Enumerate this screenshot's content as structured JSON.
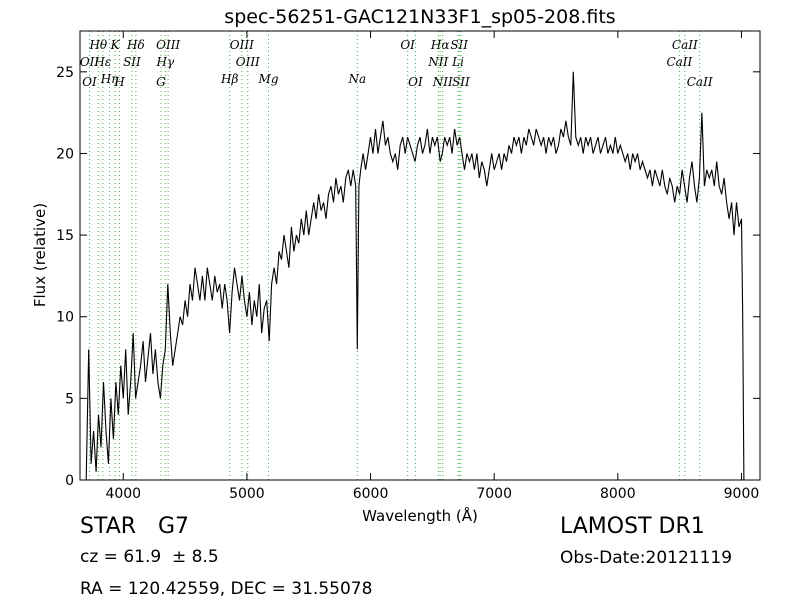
{
  "chart_data": {
    "type": "line",
    "title": "spec-56251-GAC121N33F1_sp05-208.fits",
    "xlabel": "Wavelength (Å)",
    "ylabel": "Flux (relative)",
    "xlim": [
      3650,
      9150
    ],
    "ylim": [
      0,
      27.5
    ],
    "xticks": [
      4000,
      5000,
      6000,
      7000,
      8000,
      9000
    ],
    "yticks": [
      0,
      5,
      10,
      15,
      20,
      25
    ],
    "line_color": "#000000",
    "marker_color": "#44aa44",
    "spectrum": [
      [
        3700,
        0
      ],
      [
        3720,
        8
      ],
      [
        3740,
        1
      ],
      [
        3760,
        3
      ],
      [
        3780,
        0.5
      ],
      [
        3800,
        4
      ],
      [
        3820,
        2
      ],
      [
        3840,
        6
      ],
      [
        3860,
        3
      ],
      [
        3880,
        1
      ],
      [
        3900,
        5
      ],
      [
        3920,
        2.5
      ],
      [
        3940,
        6
      ],
      [
        3960,
        4
      ],
      [
        3980,
        7
      ],
      [
        4000,
        5
      ],
      [
        4020,
        8
      ],
      [
        4040,
        4
      ],
      [
        4060,
        6
      ],
      [
        4080,
        9
      ],
      [
        4100,
        5
      ],
      [
        4120,
        6
      ],
      [
        4140,
        7
      ],
      [
        4160,
        8.5
      ],
      [
        4180,
        6
      ],
      [
        4200,
        7.5
      ],
      [
        4220,
        9
      ],
      [
        4240,
        6.5
      ],
      [
        4260,
        8
      ],
      [
        4280,
        6
      ],
      [
        4300,
        5
      ],
      [
        4320,
        7
      ],
      [
        4340,
        8
      ],
      [
        4360,
        12
      ],
      [
        4380,
        9
      ],
      [
        4400,
        7
      ],
      [
        4420,
        8
      ],
      [
        4440,
        9
      ],
      [
        4460,
        10
      ],
      [
        4480,
        9.5
      ],
      [
        4500,
        11
      ],
      [
        4520,
        10
      ],
      [
        4540,
        12
      ],
      [
        4560,
        11
      ],
      [
        4580,
        13
      ],
      [
        4600,
        12
      ],
      [
        4620,
        11
      ],
      [
        4640,
        12.5
      ],
      [
        4660,
        11
      ],
      [
        4680,
        13
      ],
      [
        4700,
        12
      ],
      [
        4720,
        11
      ],
      [
        4740,
        12.5
      ],
      [
        4760,
        11.5
      ],
      [
        4780,
        12
      ],
      [
        4800,
        10.5
      ],
      [
        4820,
        12
      ],
      [
        4840,
        11
      ],
      [
        4860,
        9
      ],
      [
        4880,
        11.5
      ],
      [
        4900,
        13
      ],
      [
        4920,
        12
      ],
      [
        4940,
        11
      ],
      [
        4960,
        12.5
      ],
      [
        4980,
        11
      ],
      [
        5000,
        10
      ],
      [
        5020,
        11.5
      ],
      [
        5040,
        9.5
      ],
      [
        5060,
        11
      ],
      [
        5080,
        10
      ],
      [
        5100,
        12
      ],
      [
        5120,
        9
      ],
      [
        5140,
        10.5
      ],
      [
        5160,
        11
      ],
      [
        5180,
        8.5
      ],
      [
        5200,
        12
      ],
      [
        5220,
        13
      ],
      [
        5240,
        12
      ],
      [
        5260,
        14
      ],
      [
        5280,
        13.5
      ],
      [
        5300,
        15
      ],
      [
        5320,
        14
      ],
      [
        5340,
        13
      ],
      [
        5360,
        15.5
      ],
      [
        5380,
        14
      ],
      [
        5400,
        15
      ],
      [
        5420,
        14.5
      ],
      [
        5440,
        16
      ],
      [
        5460,
        15
      ],
      [
        5480,
        16.5
      ],
      [
        5500,
        15
      ],
      [
        5520,
        16
      ],
      [
        5540,
        17
      ],
      [
        5560,
        16
      ],
      [
        5580,
        17.5
      ],
      [
        5600,
        16.5
      ],
      [
        5620,
        17
      ],
      [
        5640,
        16
      ],
      [
        5660,
        17.5
      ],
      [
        5680,
        18
      ],
      [
        5700,
        17
      ],
      [
        5720,
        18.5
      ],
      [
        5740,
        17.5
      ],
      [
        5760,
        18
      ],
      [
        5780,
        17
      ],
      [
        5800,
        18.5
      ],
      [
        5820,
        19
      ],
      [
        5840,
        18
      ],
      [
        5860,
        19
      ],
      [
        5880,
        18
      ],
      [
        5893,
        8
      ],
      [
        5906,
        18
      ],
      [
        5920,
        19
      ],
      [
        5940,
        20
      ],
      [
        5960,
        19
      ],
      [
        5980,
        20
      ],
      [
        6000,
        21
      ],
      [
        6020,
        20
      ],
      [
        6040,
        21.5
      ],
      [
        6060,
        20
      ],
      [
        6080,
        21
      ],
      [
        6100,
        22
      ],
      [
        6120,
        20.5
      ],
      [
        6140,
        21
      ],
      [
        6160,
        20
      ],
      [
        6180,
        19.5
      ],
      [
        6200,
        20
      ],
      [
        6220,
        19
      ],
      [
        6240,
        20.5
      ],
      [
        6260,
        21
      ],
      [
        6280,
        20
      ],
      [
        6300,
        21
      ],
      [
        6320,
        20.5
      ],
      [
        6340,
        20
      ],
      [
        6360,
        19.5
      ],
      [
        6380,
        20.5
      ],
      [
        6400,
        21
      ],
      [
        6420,
        20
      ],
      [
        6440,
        20.5
      ],
      [
        6460,
        21.5
      ],
      [
        6480,
        20
      ],
      [
        6500,
        21
      ],
      [
        6520,
        20.5
      ],
      [
        6540,
        21
      ],
      [
        6563,
        19.5
      ],
      [
        6580,
        20
      ],
      [
        6600,
        21
      ],
      [
        6620,
        20.5
      ],
      [
        6640,
        21
      ],
      [
        6660,
        20
      ],
      [
        6680,
        21.5
      ],
      [
        6700,
        20.5
      ],
      [
        6720,
        21
      ],
      [
        6740,
        20
      ],
      [
        6760,
        19
      ],
      [
        6780,
        20
      ],
      [
        6800,
        19.5
      ],
      [
        6820,
        20
      ],
      [
        6840,
        19
      ],
      [
        6860,
        20
      ],
      [
        6880,
        18.5
      ],
      [
        6900,
        19.5
      ],
      [
        6920,
        19
      ],
      [
        6940,
        18
      ],
      [
        6960,
        19
      ],
      [
        6980,
        20
      ],
      [
        7000,
        19
      ],
      [
        7020,
        19.5
      ],
      [
        7040,
        20
      ],
      [
        7060,
        19
      ],
      [
        7080,
        20
      ],
      [
        7100,
        19.5
      ],
      [
        7120,
        20.5
      ],
      [
        7140,
        20
      ],
      [
        7160,
        21
      ],
      [
        7180,
        20.5
      ],
      [
        7200,
        21
      ],
      [
        7220,
        20
      ],
      [
        7240,
        21
      ],
      [
        7260,
        20.5
      ],
      [
        7280,
        21.5
      ],
      [
        7300,
        21
      ],
      [
        7320,
        20.5
      ],
      [
        7340,
        21.5
      ],
      [
        7360,
        21
      ],
      [
        7380,
        20.5
      ],
      [
        7400,
        21
      ],
      [
        7420,
        20
      ],
      [
        7440,
        21
      ],
      [
        7460,
        20.5
      ],
      [
        7480,
        21
      ],
      [
        7500,
        20
      ],
      [
        7520,
        20.5
      ],
      [
        7540,
        21.5
      ],
      [
        7560,
        21
      ],
      [
        7580,
        22
      ],
      [
        7600,
        21
      ],
      [
        7620,
        20.5
      ],
      [
        7640,
        25
      ],
      [
        7660,
        21
      ],
      [
        7680,
        20.5
      ],
      [
        7700,
        21
      ],
      [
        7720,
        20
      ],
      [
        7740,
        21
      ],
      [
        7760,
        20.5
      ],
      [
        7780,
        21
      ],
      [
        7800,
        20
      ],
      [
        7820,
        20.5
      ],
      [
        7840,
        21
      ],
      [
        7860,
        20
      ],
      [
        7880,
        20.5
      ],
      [
        7900,
        21
      ],
      [
        7920,
        20
      ],
      [
        7940,
        20.5
      ],
      [
        7960,
        20
      ],
      [
        7980,
        21
      ],
      [
        8000,
        20
      ],
      [
        8020,
        20.5
      ],
      [
        8040,
        20
      ],
      [
        8060,
        19.5
      ],
      [
        8080,
        20
      ],
      [
        8100,
        19
      ],
      [
        8120,
        20
      ],
      [
        8140,
        19.5
      ],
      [
        8160,
        20
      ],
      [
        8180,
        19
      ],
      [
        8200,
        19.5
      ],
      [
        8220,
        19
      ],
      [
        8240,
        18.5
      ],
      [
        8260,
        19
      ],
      [
        8280,
        18
      ],
      [
        8300,
        19
      ],
      [
        8320,
        18.5
      ],
      [
        8340,
        18
      ],
      [
        8360,
        19
      ],
      [
        8380,
        18
      ],
      [
        8400,
        17.5
      ],
      [
        8420,
        18.5
      ],
      [
        8440,
        18
      ],
      [
        8460,
        17
      ],
      [
        8480,
        18
      ],
      [
        8500,
        17.5
      ],
      [
        8520,
        19
      ],
      [
        8540,
        18
      ],
      [
        8560,
        17
      ],
      [
        8580,
        18.5
      ],
      [
        8600,
        19.5
      ],
      [
        8620,
        18
      ],
      [
        8640,
        17
      ],
      [
        8660,
        18.5
      ],
      [
        8680,
        22.5
      ],
      [
        8700,
        18
      ],
      [
        8720,
        19
      ],
      [
        8740,
        18.5
      ],
      [
        8760,
        19
      ],
      [
        8780,
        18
      ],
      [
        8800,
        19.5
      ],
      [
        8820,
        18
      ],
      [
        8840,
        17.5
      ],
      [
        8860,
        18.5
      ],
      [
        8880,
        17
      ],
      [
        8900,
        16
      ],
      [
        8920,
        17
      ],
      [
        8940,
        15
      ],
      [
        8960,
        17
      ],
      [
        8980,
        15.5
      ],
      [
        9000,
        16
      ],
      [
        9010,
        10
      ],
      [
        9020,
        0
      ]
    ],
    "line_markers": [
      {
        "label": "Hθ",
        "wl": 3798,
        "row": 0
      },
      {
        "label": "K",
        "wl": 3934,
        "row": 0
      },
      {
        "label": "Hδ",
        "wl": 4102,
        "row": 0
      },
      {
        "label": "OIII",
        "wl": 4363,
        "row": 0
      },
      {
        "label": "OIII",
        "wl": 4959,
        "row": 0
      },
      {
        "label": "OI",
        "wl": 6300,
        "row": 0
      },
      {
        "label": "Hα",
        "wl": 6563,
        "row": 0
      },
      {
        "label": "SII",
        "wl": 6717,
        "row": 0
      },
      {
        "label": "CaII",
        "wl": 8542,
        "row": 0
      },
      {
        "label": "OII",
        "wl": 3727,
        "row": 1
      },
      {
        "label": "Hε",
        "wl": 3835,
        "row": 1
      },
      {
        "label": "SII",
        "wl": 4070,
        "row": 1
      },
      {
        "label": "Hγ",
        "wl": 4340,
        "row": 1
      },
      {
        "label": "OIII",
        "wl": 5007,
        "row": 1
      },
      {
        "label": "NII",
        "wl": 6548,
        "row": 1
      },
      {
        "label": "Li",
        "wl": 6708,
        "row": 1
      },
      {
        "label": "CaII",
        "wl": 8498,
        "row": 1
      },
      {
        "label": "Hη",
        "wl": 3889,
        "row": 2
      },
      {
        "label": "OI",
        "wl": 3727,
        "row": 3
      },
      {
        "label": "H",
        "wl": 3969,
        "row": 3
      },
      {
        "label": "G",
        "wl": 4305,
        "row": 3
      },
      {
        "label": "Hβ",
        "wl": 4861,
        "row": 2
      },
      {
        "label": "Mg",
        "wl": 5175,
        "row": 2
      },
      {
        "label": "Na",
        "wl": 5893,
        "row": 2
      },
      {
        "label": "OI",
        "wl": 6363,
        "row": 3
      },
      {
        "label": "NII",
        "wl": 6584,
        "row": 3
      },
      {
        "label": "SII",
        "wl": 6731,
        "row": 3
      },
      {
        "label": "CaII",
        "wl": 8662,
        "row": 3
      }
    ]
  },
  "info": {
    "class": "STAR",
    "subclass": "G7",
    "cz": "cz = 61.9  ± 8.5",
    "survey": "LAMOST DR1",
    "obs_date": "Obs-Date:20121119",
    "coords": "RA = 120.42559, DEC = 31.55078"
  }
}
